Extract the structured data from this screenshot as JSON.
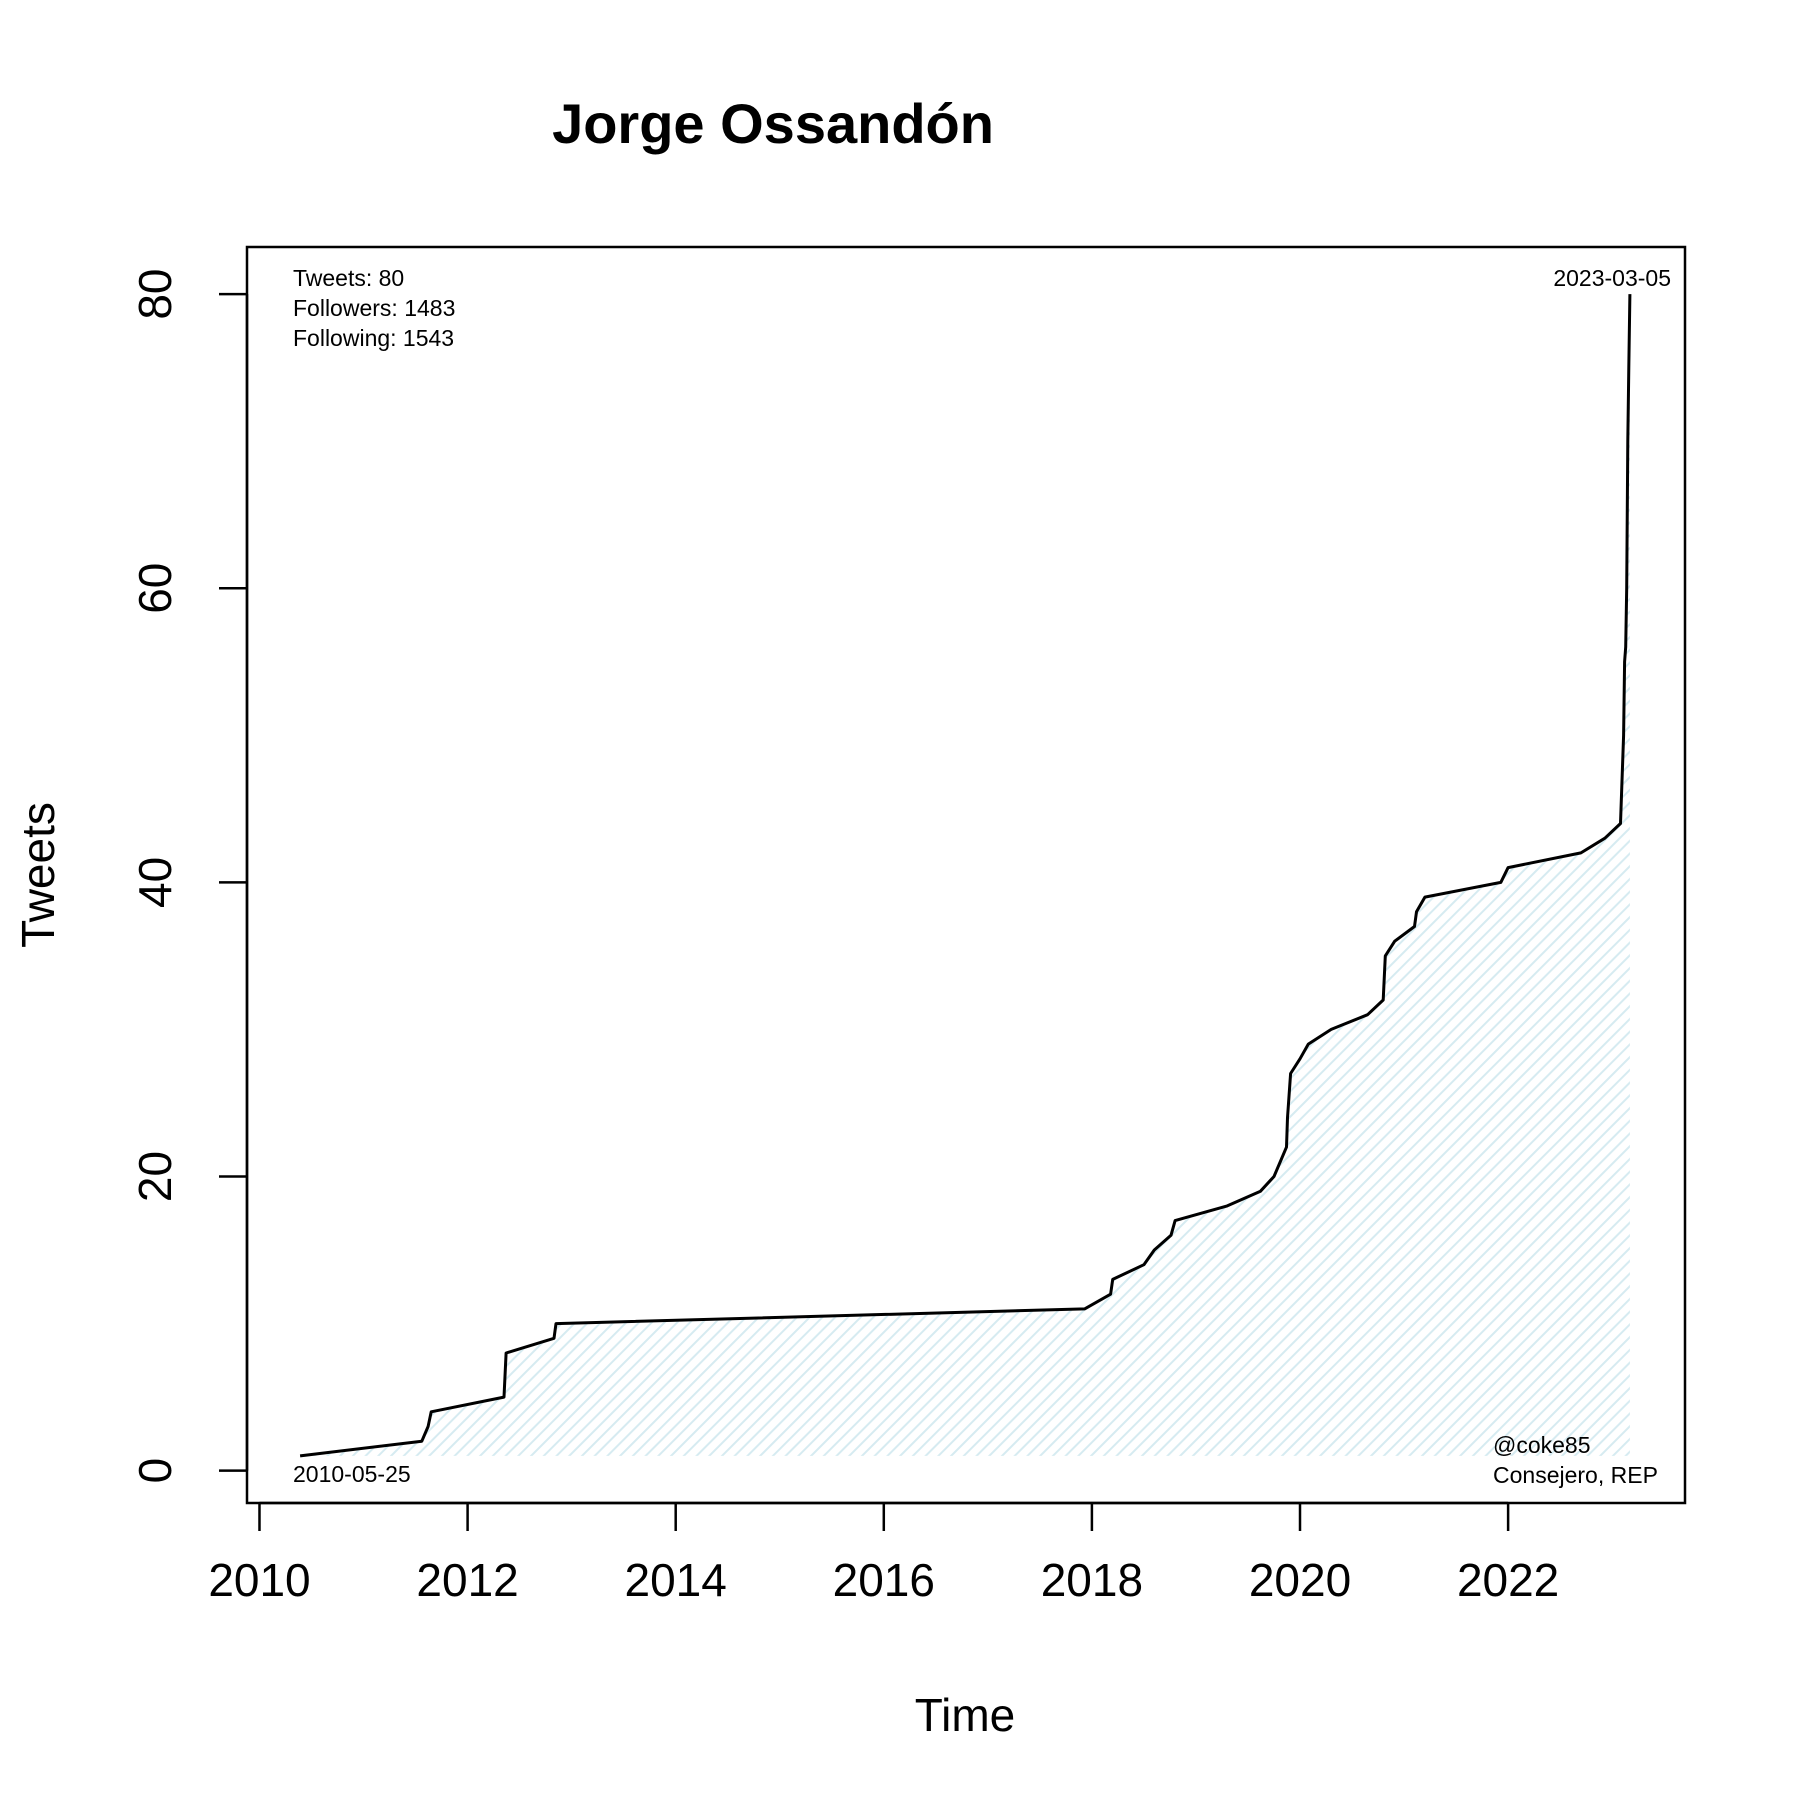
{
  "chart_data": {
    "type": "area",
    "title": "Jorge Ossandón",
    "xlabel": "Time",
    "ylabel": "Tweets",
    "xlim": [
      2009.88,
      2023.7
    ],
    "ylim": [
      -2.2,
      83.2
    ],
    "x_ticks": [
      2010,
      2012,
      2014,
      2016,
      2018,
      2020,
      2022
    ],
    "x_tick_labels": [
      "2010",
      "2012",
      "2014",
      "2016",
      "2018",
      "2020",
      "2022"
    ],
    "y_ticks": [
      0,
      20,
      40,
      60,
      80
    ],
    "y_tick_labels": [
      "0",
      "20",
      "40",
      "60",
      "80"
    ],
    "grid": false,
    "fill_color": "#dceef3",
    "line_color": "#000000",
    "series": [
      {
        "x": [
          2010.39,
          2011.56,
          2011.62,
          2011.65,
          2012.35,
          2012.37,
          2012.83,
          2012.85,
          2017.93,
          2018.18,
          2018.2,
          2018.5,
          2018.6,
          2018.76,
          2018.8,
          2019.3,
          2019.62,
          2019.75,
          2019.87,
          2019.88,
          2019.91,
          2020.0,
          2020.08,
          2020.3,
          2020.65,
          2020.8,
          2020.82,
          2020.91,
          2021.1,
          2021.12,
          2021.2,
          2021.93,
          2022.0,
          2022.7,
          2022.93,
          2023.08,
          2023.11,
          2023.12,
          2023.13,
          2023.14,
          2023.15,
          2023.16,
          2023.17
        ],
        "y": [
          1,
          2,
          3,
          4,
          5,
          8,
          9,
          10,
          11,
          12,
          13,
          14,
          15,
          16,
          17,
          18,
          19,
          20,
          22,
          24,
          27,
          28,
          29,
          30,
          31,
          32,
          35,
          36,
          37,
          38,
          39,
          40,
          41,
          42,
          43,
          44,
          50,
          55,
          56,
          60,
          70,
          75,
          80
        ]
      }
    ],
    "annotations": {
      "stats": [
        "Tweets: 80",
        "Followers: 1483",
        "Following: 1543"
      ],
      "start_date": "2010-05-25",
      "end_date": "2023-03-05",
      "handle": "@coke85",
      "role": "Consejero, REP"
    }
  }
}
